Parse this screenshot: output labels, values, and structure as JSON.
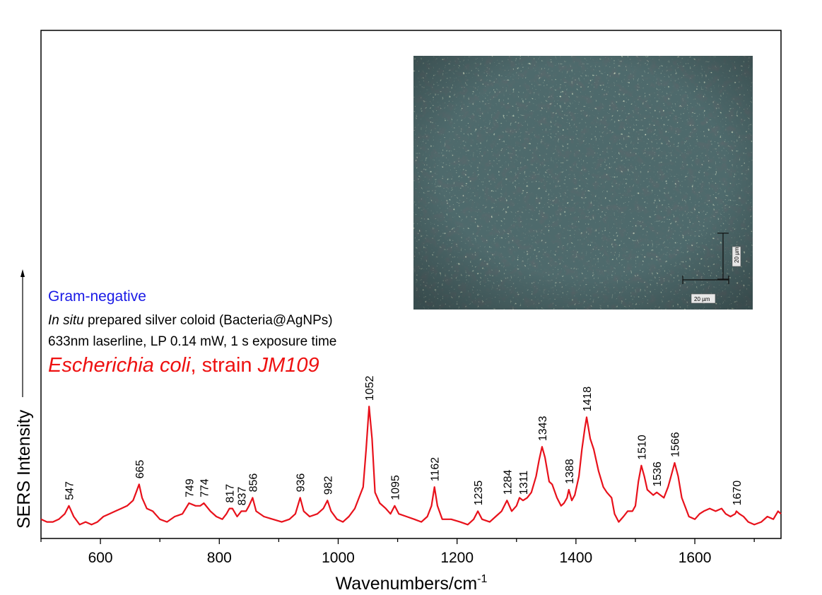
{
  "chart_data": {
    "type": "line",
    "xlabel": "Wavenumbers/cm",
    "xlabel_superscript": "-1",
    "ylabel": "SERS Intensity",
    "xlim": [
      500,
      1745
    ],
    "ylim": [
      0,
      1
    ],
    "y_axis_tick_labels": false,
    "x_ticks": [
      600,
      800,
      1000,
      1200,
      1400,
      1600
    ],
    "x_tick_labels": [
      "600",
      "800",
      "1000",
      "1200",
      "1400",
      "1600"
    ],
    "grid": false,
    "series": [
      {
        "color": "#e8111b",
        "points": [
          [
            500,
            0.04
          ],
          [
            510,
            0.03
          ],
          [
            520,
            0.03
          ],
          [
            530,
            0.04
          ],
          [
            540,
            0.06
          ],
          [
            547,
            0.09
          ],
          [
            555,
            0.05
          ],
          [
            565,
            0.02
          ],
          [
            575,
            0.03
          ],
          [
            585,
            0.02
          ],
          [
            595,
            0.03
          ],
          [
            605,
            0.05
          ],
          [
            615,
            0.06
          ],
          [
            625,
            0.07
          ],
          [
            635,
            0.08
          ],
          [
            645,
            0.09
          ],
          [
            655,
            0.11
          ],
          [
            660,
            0.14
          ],
          [
            665,
            0.17
          ],
          [
            670,
            0.12
          ],
          [
            678,
            0.08
          ],
          [
            688,
            0.07
          ],
          [
            700,
            0.04
          ],
          [
            712,
            0.03
          ],
          [
            725,
            0.05
          ],
          [
            738,
            0.06
          ],
          [
            749,
            0.1
          ],
          [
            760,
            0.09
          ],
          [
            768,
            0.09
          ],
          [
            774,
            0.1
          ],
          [
            785,
            0.07
          ],
          [
            795,
            0.05
          ],
          [
            805,
            0.04
          ],
          [
            812,
            0.06
          ],
          [
            817,
            0.08
          ],
          [
            822,
            0.08
          ],
          [
            830,
            0.05
          ],
          [
            837,
            0.07
          ],
          [
            845,
            0.07
          ],
          [
            850,
            0.09
          ],
          [
            856,
            0.12
          ],
          [
            862,
            0.07
          ],
          [
            875,
            0.05
          ],
          [
            890,
            0.04
          ],
          [
            905,
            0.03
          ],
          [
            918,
            0.04
          ],
          [
            928,
            0.06
          ],
          [
            936,
            0.12
          ],
          [
            942,
            0.07
          ],
          [
            952,
            0.05
          ],
          [
            965,
            0.06
          ],
          [
            975,
            0.08
          ],
          [
            982,
            0.11
          ],
          [
            988,
            0.07
          ],
          [
            998,
            0.04
          ],
          [
            1008,
            0.03
          ],
          [
            1018,
            0.05
          ],
          [
            1028,
            0.08
          ],
          [
            1035,
            0.12
          ],
          [
            1042,
            0.16
          ],
          [
            1047,
            0.3
          ],
          [
            1052,
            0.46
          ],
          [
            1057,
            0.34
          ],
          [
            1062,
            0.14
          ],
          [
            1070,
            0.1
          ],
          [
            1080,
            0.08
          ],
          [
            1088,
            0.06
          ],
          [
            1095,
            0.09
          ],
          [
            1102,
            0.06
          ],
          [
            1115,
            0.05
          ],
          [
            1128,
            0.04
          ],
          [
            1140,
            0.03
          ],
          [
            1150,
            0.05
          ],
          [
            1157,
            0.09
          ],
          [
            1162,
            0.16
          ],
          [
            1167,
            0.09
          ],
          [
            1175,
            0.04
          ],
          [
            1190,
            0.04
          ],
          [
            1205,
            0.03
          ],
          [
            1218,
            0.02
          ],
          [
            1228,
            0.04
          ],
          [
            1235,
            0.07
          ],
          [
            1242,
            0.04
          ],
          [
            1255,
            0.03
          ],
          [
            1265,
            0.05
          ],
          [
            1275,
            0.07
          ],
          [
            1284,
            0.11
          ],
          [
            1292,
            0.07
          ],
          [
            1300,
            0.09
          ],
          [
            1305,
            0.12
          ],
          [
            1311,
            0.11
          ],
          [
            1318,
            0.12
          ],
          [
            1325,
            0.14
          ],
          [
            1333,
            0.2
          ],
          [
            1338,
            0.26
          ],
          [
            1343,
            0.31
          ],
          [
            1348,
            0.27
          ],
          [
            1355,
            0.18
          ],
          [
            1360,
            0.17
          ],
          [
            1368,
            0.12
          ],
          [
            1375,
            0.09
          ],
          [
            1380,
            0.1
          ],
          [
            1385,
            0.12
          ],
          [
            1388,
            0.15
          ],
          [
            1393,
            0.11
          ],
          [
            1398,
            0.13
          ],
          [
            1405,
            0.2
          ],
          [
            1410,
            0.3
          ],
          [
            1415,
            0.38
          ],
          [
            1418,
            0.42
          ],
          [
            1424,
            0.34
          ],
          [
            1430,
            0.3
          ],
          [
            1438,
            0.22
          ],
          [
            1446,
            0.16
          ],
          [
            1452,
            0.14
          ],
          [
            1460,
            0.12
          ],
          [
            1465,
            0.06
          ],
          [
            1472,
            0.03
          ],
          [
            1480,
            0.05
          ],
          [
            1487,
            0.07
          ],
          [
            1495,
            0.07
          ],
          [
            1500,
            0.09
          ],
          [
            1505,
            0.18
          ],
          [
            1510,
            0.24
          ],
          [
            1515,
            0.2
          ],
          [
            1520,
            0.15
          ],
          [
            1525,
            0.14
          ],
          [
            1530,
            0.13
          ],
          [
            1536,
            0.14
          ],
          [
            1542,
            0.13
          ],
          [
            1548,
            0.12
          ],
          [
            1555,
            0.16
          ],
          [
            1560,
            0.2
          ],
          [
            1566,
            0.25
          ],
          [
            1572,
            0.2
          ],
          [
            1578,
            0.12
          ],
          [
            1585,
            0.08
          ],
          [
            1590,
            0.05
          ],
          [
            1600,
            0.04
          ],
          [
            1608,
            0.06
          ],
          [
            1615,
            0.07
          ],
          [
            1625,
            0.08
          ],
          [
            1635,
            0.07
          ],
          [
            1645,
            0.08
          ],
          [
            1652,
            0.06
          ],
          [
            1660,
            0.05
          ],
          [
            1668,
            0.06
          ],
          [
            1670,
            0.07
          ],
          [
            1675,
            0.06
          ],
          [
            1682,
            0.05
          ],
          [
            1690,
            0.03
          ],
          [
            1700,
            0.02
          ],
          [
            1712,
            0.03
          ],
          [
            1722,
            0.05
          ],
          [
            1732,
            0.04
          ],
          [
            1740,
            0.07
          ],
          [
            1745,
            0.06
          ]
        ]
      }
    ],
    "peak_labels": [
      {
        "x": 547,
        "label": "547"
      },
      {
        "x": 665,
        "label": "665"
      },
      {
        "x": 749,
        "label": "749"
      },
      {
        "x": 774,
        "label": "774"
      },
      {
        "x": 817,
        "label": "817"
      },
      {
        "x": 837,
        "label": "837"
      },
      {
        "x": 856,
        "label": "856"
      },
      {
        "x": 936,
        "label": "936"
      },
      {
        "x": 982,
        "label": "982"
      },
      {
        "x": 1052,
        "label": "1052"
      },
      {
        "x": 1095,
        "label": "1095"
      },
      {
        "x": 1162,
        "label": "1162"
      },
      {
        "x": 1235,
        "label": "1235"
      },
      {
        "x": 1284,
        "label": "1284"
      },
      {
        "x": 1311,
        "label": "1311"
      },
      {
        "x": 1343,
        "label": "1343"
      },
      {
        "x": 1388,
        "label": "1388"
      },
      {
        "x": 1418,
        "label": "1418"
      },
      {
        "x": 1510,
        "label": "1510"
      },
      {
        "x": 1536,
        "label": "1536"
      },
      {
        "x": 1566,
        "label": "1566"
      },
      {
        "x": 1670,
        "label": "1670"
      }
    ]
  },
  "annotations": {
    "gram": "Gram-negative",
    "prep_italic": "In situ",
    "prep_rest": " prepared silver coloid (Bacteria@AgNPs)",
    "laser": "633nm laserline, LP 0.14 mW, 1 s exposure time",
    "species": "Escherichia coli",
    "strain_word": ", strain ",
    "strain_name": "JM109"
  },
  "inset": {
    "scale_vertical": "20 µm",
    "scale_horizontal": "20 µm"
  },
  "colors": {
    "spectrum": "#e8111b",
    "gram_text": "#1a1ae6",
    "strain_text": "#ee1111",
    "micro_background": "#4e6a6c"
  }
}
